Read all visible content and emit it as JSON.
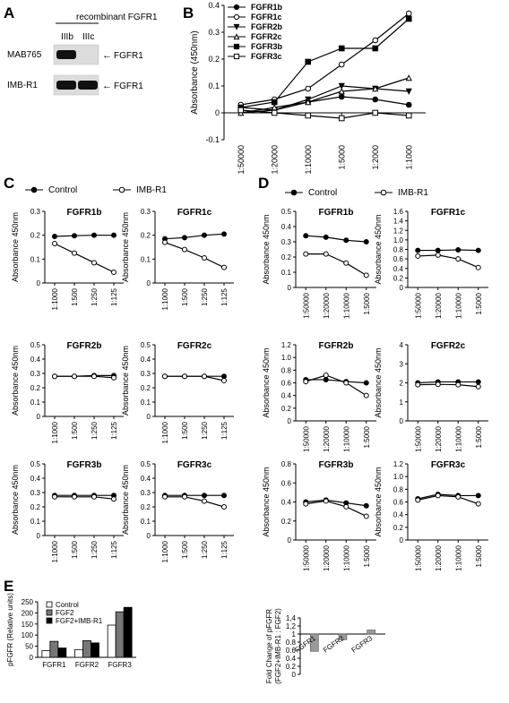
{
  "panel_letters": [
    "A",
    "B",
    "C",
    "D",
    "E"
  ],
  "panel_a": {
    "header": "recombinant FGFR1",
    "lanes": [
      "IIIb",
      "IIIc"
    ],
    "rows": [
      {
        "label": "MAB765",
        "band": "FGFR1",
        "bands": [
          true,
          false
        ]
      },
      {
        "label": "IMB-R1",
        "band": "FGFR1",
        "bands": [
          true,
          true
        ]
      }
    ]
  },
  "chart_data": [
    {
      "panel": "B",
      "type": "line",
      "categories": [
        "1:50000",
        "1:20000",
        "1:10000",
        "1:5000",
        "1:2000",
        "1:1000"
      ],
      "ylabel": "Absorbance (450nm)",
      "ylim": [
        -0.1,
        0.4
      ],
      "yticks": [
        "-0.1",
        "0",
        "0.1",
        "0.2",
        "0.3",
        "0.4"
      ],
      "series": [
        {
          "name": "FGFR1b",
          "marker": "filled-circle",
          "values": [
            0.02,
            0.01,
            0.04,
            0.06,
            0.05,
            0.03
          ]
        },
        {
          "name": "FGFR1c",
          "marker": "open-circle",
          "values": [
            0.03,
            0.05,
            0.09,
            0.18,
            0.27,
            0.37
          ]
        },
        {
          "name": "FGFR2b",
          "marker": "filled-tri-down",
          "values": [
            0.0,
            0.01,
            0.05,
            0.1,
            0.09,
            0.08
          ]
        },
        {
          "name": "FGFR2c",
          "marker": "open-triangle",
          "values": [
            0.0,
            0.02,
            0.04,
            0.08,
            0.09,
            0.13
          ]
        },
        {
          "name": "FGFR3b",
          "marker": "filled-square",
          "values": [
            0.02,
            0.04,
            0.19,
            0.24,
            0.24,
            0.35
          ]
        },
        {
          "name": "FGFR3c",
          "marker": "open-square",
          "values": [
            0.01,
            0.0,
            -0.01,
            -0.02,
            0.0,
            -0.01
          ]
        }
      ]
    },
    {
      "panel": "C",
      "type": "line",
      "legend": [
        {
          "name": "Control",
          "marker": "filled-circle"
        },
        {
          "name": "IMB-R1",
          "marker": "open-circle"
        }
      ],
      "ylabel": "Absorbance 450nm",
      "categories": [
        "1:1000",
        "1:500",
        "1:250",
        "1:125"
      ],
      "subplots": [
        {
          "title": "FGFR1b",
          "ylim": [
            0,
            0.3
          ],
          "yticks": [
            "0",
            "0.1",
            "0.2",
            "0.3"
          ],
          "series": [
            {
              "name": "Control",
              "values": [
                0.195,
                0.198,
                0.2,
                0.2
              ]
            },
            {
              "name": "IMB-R1",
              "values": [
                0.165,
                0.125,
                0.085,
                0.045
              ]
            }
          ]
        },
        {
          "title": "FGFR1c",
          "ylim": [
            0,
            0.3
          ],
          "yticks": [
            "0",
            "0.1",
            "0.2",
            "0.3"
          ],
          "series": [
            {
              "name": "Control",
              "values": [
                0.185,
                0.19,
                0.2,
                0.205
              ]
            },
            {
              "name": "IMB-R1",
              "values": [
                0.17,
                0.14,
                0.105,
                0.065
              ]
            }
          ]
        },
        {
          "title": "FGFR2b",
          "ylim": [
            0,
            0.5
          ],
          "yticks": [
            "0",
            "0.1",
            "0.2",
            "0.3",
            "0.4",
            "0.5"
          ],
          "series": [
            {
              "name": "Control",
              "values": [
                0.28,
                0.28,
                0.285,
                0.285
              ]
            },
            {
              "name": "IMB-R1",
              "values": [
                0.28,
                0.28,
                0.28,
                0.27
              ]
            }
          ]
        },
        {
          "title": "FGFR2c",
          "ylim": [
            0,
            0.5
          ],
          "yticks": [
            "0",
            "0.1",
            "0.2",
            "0.3",
            "0.4",
            "0.5"
          ],
          "series": [
            {
              "name": "Control",
              "values": [
                0.28,
                0.28,
                0.28,
                0.28
              ]
            },
            {
              "name": "IMB-R1",
              "values": [
                0.28,
                0.28,
                0.28,
                0.25
              ]
            }
          ]
        },
        {
          "title": "FGFR3b",
          "ylim": [
            0,
            0.5
          ],
          "yticks": [
            "0",
            "0.1",
            "0.2",
            "0.3",
            "0.4",
            "0.5"
          ],
          "series": [
            {
              "name": "Control",
              "values": [
                0.28,
                0.28,
                0.28,
                0.28
              ]
            },
            {
              "name": "IMB-R1",
              "values": [
                0.27,
                0.27,
                0.27,
                0.255
              ]
            }
          ]
        },
        {
          "title": "FGFR3c",
          "ylim": [
            0,
            0.5
          ],
          "yticks": [
            "0",
            "0.1",
            "0.2",
            "0.3",
            "0.4",
            "0.5"
          ],
          "series": [
            {
              "name": "Control",
              "values": [
                0.28,
                0.28,
                0.28,
                0.28
              ]
            },
            {
              "name": "IMB-R1",
              "values": [
                0.27,
                0.27,
                0.24,
                0.2
              ]
            }
          ]
        }
      ]
    },
    {
      "panel": "D",
      "type": "line",
      "legend": [
        {
          "name": "Control",
          "marker": "filled-circle"
        },
        {
          "name": "IMB-R1",
          "marker": "open-circle"
        }
      ],
      "ylabel": "Absorbance 450nm",
      "categories": [
        "1:50000",
        "1:20000",
        "1:10000",
        "1:5000"
      ],
      "subplots": [
        {
          "title": "FGFR1b",
          "ylim": [
            0,
            0.5
          ],
          "yticks": [
            "0",
            "0.1",
            "0.2",
            "0.3",
            "0.4",
            "0.5"
          ],
          "series": [
            {
              "name": "Control",
              "values": [
                0.34,
                0.33,
                0.31,
                0.3
              ]
            },
            {
              "name": "IMB-R1",
              "values": [
                0.22,
                0.22,
                0.16,
                0.08
              ]
            }
          ]
        },
        {
          "title": "FGFR1c",
          "ylim": [
            0,
            1.6
          ],
          "yticks": [
            "0",
            "0.2",
            "0.4",
            "0.6",
            "0.8",
            "1.0",
            "1.2",
            "1.4",
            "1.6"
          ],
          "series": [
            {
              "name": "Control",
              "values": [
                0.78,
                0.78,
                0.79,
                0.78
              ]
            },
            {
              "name": "IMB-R1",
              "values": [
                0.66,
                0.68,
                0.6,
                0.42
              ]
            }
          ]
        },
        {
          "title": "FGFR2b",
          "ylim": [
            0,
            1.2
          ],
          "yticks": [
            "0",
            "0.2",
            "0.4",
            "0.6",
            "0.8",
            "1.0",
            "1.2"
          ],
          "series": [
            {
              "name": "Control",
              "values": [
                0.65,
                0.65,
                0.62,
                0.6
              ]
            },
            {
              "name": "IMB-R1",
              "values": [
                0.62,
                0.72,
                0.6,
                0.4
              ]
            }
          ]
        },
        {
          "title": "FGFR2c",
          "ylim": [
            0,
            4
          ],
          "yticks": [
            "0",
            "1",
            "2",
            "3",
            "4"
          ],
          "series": [
            {
              "name": "Control",
              "values": [
                2.0,
                2.05,
                2.05,
                2.05
              ]
            },
            {
              "name": "IMB-R1",
              "values": [
                1.9,
                1.92,
                1.9,
                1.8
              ]
            }
          ]
        },
        {
          "title": "FGFR3b",
          "ylim": [
            0,
            0.8
          ],
          "yticks": [
            "0",
            "0.2",
            "0.4",
            "0.6",
            "0.8"
          ],
          "series": [
            {
              "name": "Control",
              "values": [
                0.4,
                0.42,
                0.39,
                0.36
              ]
            },
            {
              "name": "IMB-R1",
              "values": [
                0.38,
                0.41,
                0.35,
                0.25
              ]
            }
          ]
        },
        {
          "title": "FGFR3c",
          "ylim": [
            0,
            1.2
          ],
          "yticks": [
            "0",
            "0.2",
            "0.4",
            "0.6",
            "0.8",
            "1.0",
            "1.2"
          ],
          "series": [
            {
              "name": "Control",
              "values": [
                0.65,
                0.72,
                0.7,
                0.7
              ]
            },
            {
              "name": "IMB-R1",
              "values": [
                0.63,
                0.7,
                0.68,
                0.57
              ]
            }
          ]
        }
      ]
    },
    {
      "panel": "E-left",
      "type": "bar",
      "categories": [
        "FGFR1",
        "FGFR2",
        "FGFR3"
      ],
      "ylabel": "pFGFR (Relative units)",
      "ylim": [
        0,
        250
      ],
      "yticks": [
        "0",
        "50",
        "100",
        "150",
        "200",
        "250"
      ],
      "series": [
        {
          "name": "Control",
          "color": "#ffffff",
          "values": [
            30,
            35,
            145
          ]
        },
        {
          "name": "FGF2",
          "color": "#777777",
          "values": [
            72,
            75,
            205
          ]
        },
        {
          "name": "FGF2+IMB-R1",
          "color": "#000000",
          "values": [
            42,
            65,
            225
          ]
        }
      ]
    },
    {
      "panel": "E-right",
      "type": "bar",
      "categories": [
        "FGFR1",
        "FGFR2",
        "FGFR3"
      ],
      "ylabel": "Fold Change of pFGFR (FGF2+IMB-R1 : FGF2)",
      "ylim": [
        0,
        1.4
      ],
      "yticks": [
        "0",
        "0.2",
        "0.4",
        "0.6",
        "0.8",
        "1",
        "1,2",
        "1,4"
      ],
      "baseline": 1,
      "values": [
        0.57,
        0.86,
        1.1
      ],
      "color": "#999999"
    }
  ]
}
